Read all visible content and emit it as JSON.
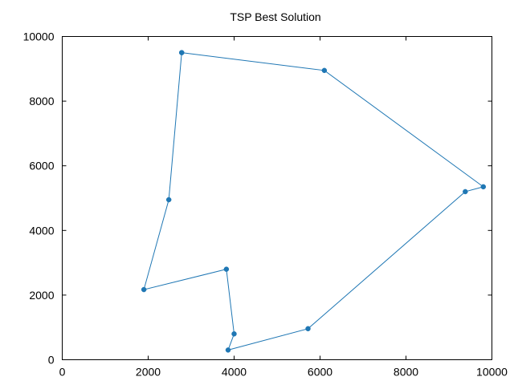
{
  "chart_data": {
    "type": "line",
    "title": "TSP Best Solution",
    "xlabel": "",
    "ylabel": "",
    "xlim": [
      0,
      10000
    ],
    "ylim": [
      0,
      10000
    ],
    "xticks": [
      "0",
      "2000",
      "4000",
      "6000",
      "8000",
      "10000"
    ],
    "yticks": [
      "0",
      "2000",
      "4000",
      "6000",
      "8000",
      "10000"
    ],
    "grid": false,
    "legend": "none",
    "series": [
      {
        "color": "#1f77b4",
        "marker": "filled-circle",
        "x": [
          2780,
          6100,
          9800,
          9380,
          5720,
          3860,
          4000,
          3820,
          1900,
          2480,
          2780
        ],
        "y": [
          9500,
          8950,
          5350,
          5200,
          960,
          300,
          800,
          2800,
          2170,
          4950,
          9500
        ]
      }
    ]
  }
}
